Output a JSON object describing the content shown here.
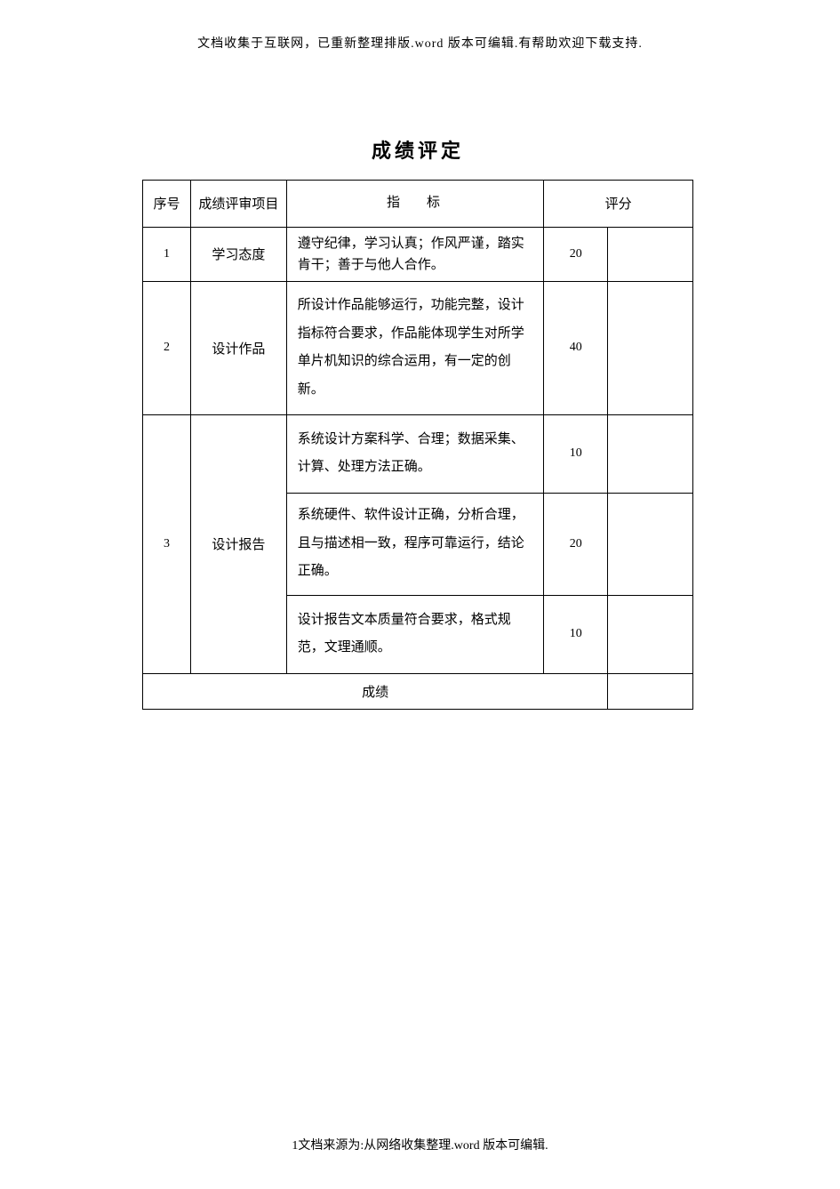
{
  "header_note": "文档收集于互联网，已重新整理排版.word 版本可编辑.有帮助欢迎下载支持.",
  "title": "成绩评定",
  "table": {
    "headers": {
      "seq": "序号",
      "item": "成绩评审项目",
      "indicator": "指标",
      "score": "评分"
    },
    "rows": [
      {
        "seq": "1",
        "item": "学习态度",
        "desc": "遵守纪律，学习认真；作风严谨，踏实肯干；善于与他人合作。",
        "score": "20"
      },
      {
        "seq": "2",
        "item": "设计作品",
        "desc": "所设计作品能够运行，功能完整，设计指标符合要求，作品能体现学生对所学单片机知识的综合运用，有一定的创新。",
        "score": "40"
      },
      {
        "seq": "3",
        "item": "设计报告",
        "sub": [
          {
            "desc": "系统设计方案科学、合理；数据采集、计算、处理方法正确。",
            "score": "10"
          },
          {
            "desc": "系统硬件、软件设计正确，分析合理，且与描述相一致，程序可靠运行，结论正确。",
            "score": "20"
          },
          {
            "desc": "设计报告文本质量符合要求，格式规范，文理通顺。",
            "score": "10"
          }
        ]
      }
    ],
    "result_label": "成绩"
  },
  "footer_note": "1文档来源为:从网络收集整理.word 版本可编辑."
}
